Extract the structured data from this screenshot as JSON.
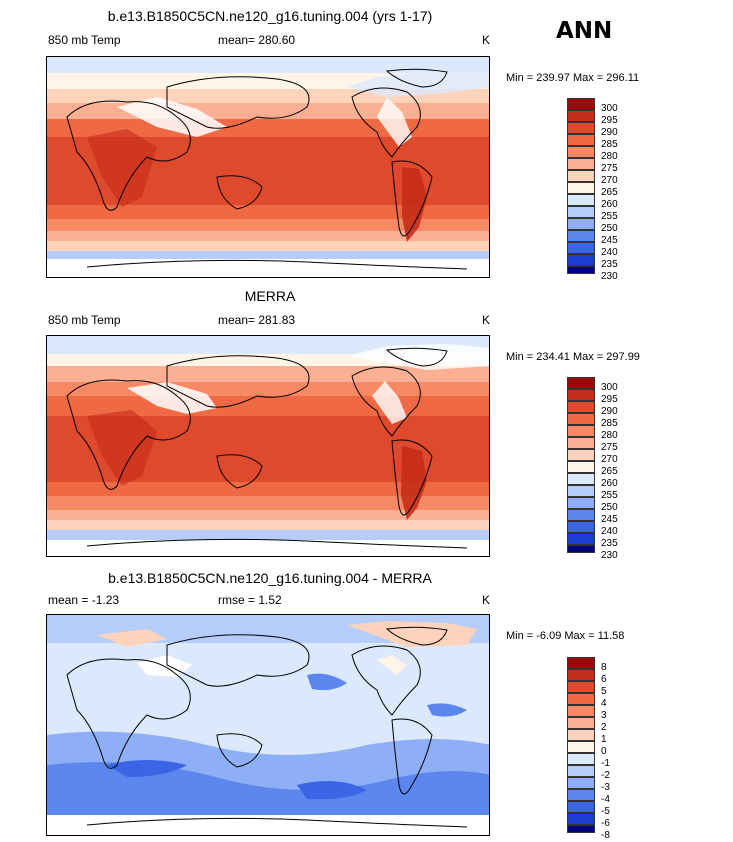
{
  "season": "ANN",
  "colors": {
    "abs_scale": [
      "#00007f",
      "#1a3fd0",
      "#3a66e6",
      "#5b86ee",
      "#8eaff5",
      "#b7cdf9",
      "#dce8fc",
      "#fff4e8",
      "#fdd3bb",
      "#fbb093",
      "#f78a65",
      "#ef6a44",
      "#de4a2b",
      "#c42c1a",
      "#9b0a0a"
    ],
    "diff_scale": [
      "#00007f",
      "#1a3fd0",
      "#3a66e6",
      "#5b86ee",
      "#8eaff5",
      "#b7cdf9",
      "#dce8fc",
      "#fff4e8",
      "#fdd3bb",
      "#fbb093",
      "#f78a65",
      "#ef6a44",
      "#de4a2b",
      "#c42c1a",
      "#9b0a0a"
    ]
  },
  "panels": [
    {
      "id": "model",
      "title": "b.e13.B1850C5CN.ne120_g16.tuning.004 (yrs 1-17)",
      "left_label": "850 mb Temp",
      "stat_label": "mean= 280.60",
      "stat2_label": "",
      "units": "K",
      "minmax": "Min = 239.97 Max = 296.11",
      "colorbar_labels": [
        "300",
        "295",
        "290",
        "285",
        "280",
        "275",
        "270",
        "265",
        "260",
        "255",
        "250",
        "245",
        "240",
        "235",
        "230"
      ]
    },
    {
      "id": "obs",
      "title": "MERRA",
      "left_label": "850 mb Temp",
      "stat_label": "mean= 281.83",
      "stat2_label": "",
      "units": "K",
      "minmax": "Min = 234.41 Max = 297.99",
      "colorbar_labels": [
        "300",
        "295",
        "290",
        "285",
        "280",
        "275",
        "270",
        "265",
        "260",
        "255",
        "250",
        "245",
        "240",
        "235",
        "230"
      ]
    },
    {
      "id": "diff",
      "title": "b.e13.B1850C5CN.ne120_g16.tuning.004 - MERRA",
      "left_label": "mean =   -1.23",
      "stat_label": "rmse =    1.52",
      "stat2_label": "",
      "units": "K",
      "minmax": "Min =   -6.09 Max =   11.58",
      "colorbar_labels": [
        "8",
        "6",
        "5",
        "4",
        "3",
        "2",
        "1",
        "0",
        "-1",
        "-2",
        "-3",
        "-4",
        "-5",
        "-6",
        "-8"
      ]
    }
  ]
}
